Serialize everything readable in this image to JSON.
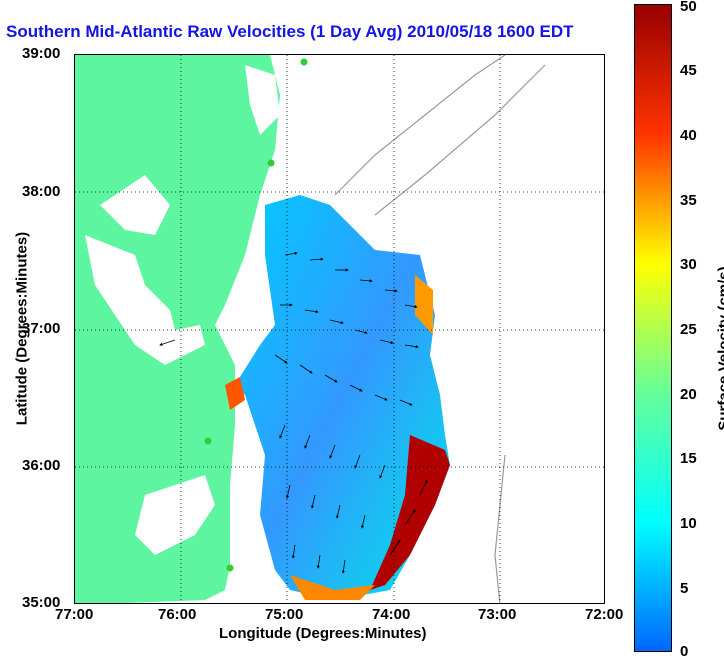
{
  "title": "Southern Mid-Atlantic Raw Velocities (1 Day Avg) 2010/05/18 1600 EDT",
  "x_axis": {
    "label": "Longitude (Degrees:Minutes)",
    "ticks": [
      "77:00",
      "76:00",
      "75:00",
      "74:00",
      "73:00",
      "72:00"
    ]
  },
  "y_axis": {
    "label": "Latitude (Degrees:Minutes)",
    "ticks": [
      "39:00",
      "38:00",
      "37:00",
      "36:00",
      "35:00"
    ]
  },
  "colorbar": {
    "label": "Surface Velocity (cm/s)",
    "ticks": [
      "50",
      "45",
      "40",
      "35",
      "30",
      "25",
      "20",
      "15",
      "10",
      "5",
      "0"
    ],
    "range": [
      0,
      50
    ],
    "units": "cm/s"
  },
  "map": {
    "extent": {
      "lon": [
        -77,
        -72
      ],
      "lat": [
        35,
        39
      ]
    },
    "grid": true,
    "colors": {
      "land": "#5ef5a0",
      "water": "#ffffff",
      "contour": "#999999",
      "station": "#33cc33"
    },
    "stations": [
      {
        "lon": -74.83,
        "lat": 38.97
      },
      {
        "lon": -75.1,
        "lat": 37.77
      },
      {
        "lon": -75.7,
        "lat": 36.18
      },
      {
        "lon": -75.47,
        "lat": 35.27
      }
    ]
  }
}
